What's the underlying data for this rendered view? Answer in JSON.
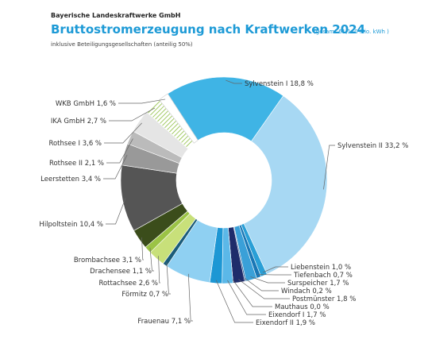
{
  "chart_data": {
    "type": "pie",
    "publisher": "Bayerische Landeskraftwerke GmbH",
    "title": "Bruttostromerzeugung nach Kraftwerken 2024",
    "note": "(gesamt 61,140 Mio. kWh )",
    "subtitle": "inklusive Beteiligungsgesellschaften (anteilig 50%)",
    "categories": [
      "Sylvenstein I",
      "Sylvenstein II",
      "Liebenstein",
      "Tiefenbach",
      "Surspeicher",
      "Windach",
      "Postmünster",
      "Mauthaus",
      "Eixendorf I",
      "Eixendorf II",
      "Frauenau",
      "Förmitz",
      "Rottachsee",
      "Drachensee",
      "Brombachsee",
      "Hilpoltstein",
      "Leerstetten",
      "Rothsee II",
      "Rothsee I",
      "IKA GmbH",
      "WKB GmbH"
    ],
    "values": [
      18.8,
      33.2,
      1.0,
      0.7,
      1.7,
      0.2,
      1.8,
      0.0,
      1.7,
      1.9,
      7.1,
      0.7,
      2.6,
      1.1,
      3.1,
      10.4,
      3.4,
      2.1,
      3.6,
      2.7,
      1.6
    ],
    "value_labels": [
      "18,8 %",
      "33,2 %",
      "1,0 %",
      "0,7 %",
      "1,7 %",
      "0,2 %",
      "1,8 %",
      "0,0 %",
      "1,7 %",
      "1,9 %",
      "7,1 %",
      "0,7 %",
      "2,6 %",
      "1,1 %",
      "3,1 %",
      "10,4 %",
      "3,4 %",
      "2,1 %",
      "3,6 %",
      "2,7 %",
      "1,6 %"
    ],
    "colors": [
      "#3fb4e5",
      "#a7d8f3",
      "#2a9fd6",
      "#1a77b5",
      "#3aa0d8",
      "#1b4f8a",
      "#1e2c6b",
      "#333333",
      "#5bb8e8",
      "#1d97d4",
      "#8fd0f2",
      "#1a5c7a",
      "#c8e07a",
      "#9bc345",
      "#3b4d1b",
      "#555555",
      "#999999",
      "#bbbbbb",
      "#e5e5e5",
      "#8cbd3f",
      "#ffffff"
    ],
    "hatched": [
      19
    ]
  }
}
